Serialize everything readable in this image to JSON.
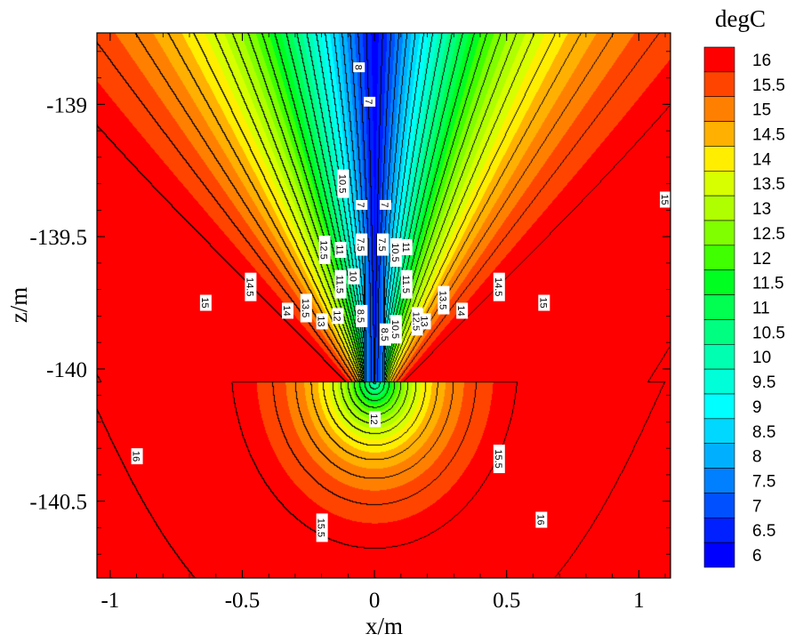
{
  "chart_data": {
    "type": "heatmap",
    "xlabel": "x/m",
    "ylabel": "z/m",
    "xlim": [
      -1.05,
      1.12
    ],
    "ylim": [
      -140.79,
      -138.73
    ],
    "x_ticks": [
      {
        "value": -1,
        "label": "-1"
      },
      {
        "value": -0.5,
        "label": "-0.5"
      },
      {
        "value": 0,
        "label": "0"
      },
      {
        "value": 0.5,
        "label": "0.5"
      },
      {
        "value": 1,
        "label": "1"
      }
    ],
    "y_ticks": [
      {
        "value": -139,
        "label": "-139"
      },
      {
        "value": -139.5,
        "label": "-139.5"
      },
      {
        "value": -140,
        "label": "-140"
      },
      {
        "value": -140.5,
        "label": "-140.5"
      }
    ],
    "colorbar": {
      "title": "degC",
      "levels": [
        {
          "value": 16,
          "label": "16",
          "color": "#ff0000"
        },
        {
          "value": 15.5,
          "label": "15.5",
          "color": "#ff4400"
        },
        {
          "value": 15,
          "label": "15",
          "color": "#ff8000"
        },
        {
          "value": 14.5,
          "label": "14.5",
          "color": "#ffb000"
        },
        {
          "value": 14,
          "label": "14",
          "color": "#ffee00"
        },
        {
          "value": 13.5,
          "label": "13.5",
          "color": "#d8ff00"
        },
        {
          "value": 13,
          "label": "13",
          "color": "#b0ff00"
        },
        {
          "value": 12.5,
          "label": "12.5",
          "color": "#80ff00"
        },
        {
          "value": 12,
          "label": "12",
          "color": "#40ff00"
        },
        {
          "value": 11.5,
          "label": "11.5",
          "color": "#00ff20"
        },
        {
          "value": 11,
          "label": "11",
          "color": "#00ff50"
        },
        {
          "value": 10.5,
          "label": "10.5",
          "color": "#00ff80"
        },
        {
          "value": 10,
          "label": "10",
          "color": "#00ffb0"
        },
        {
          "value": 9.5,
          "label": "9.5",
          "color": "#00ffd8"
        },
        {
          "value": 9,
          "label": "9",
          "color": "#00ffff"
        },
        {
          "value": 8.5,
          "label": "8.5",
          "color": "#00d8ff"
        },
        {
          "value": 8,
          "label": "8",
          "color": "#00b0ff"
        },
        {
          "value": 7.5,
          "label": "7.5",
          "color": "#0080ff"
        },
        {
          "value": 7,
          "label": "7",
          "color": "#0050ff"
        },
        {
          "value": 6.5,
          "label": "6.5",
          "color": "#0020ff"
        },
        {
          "value": 6,
          "label": "6",
          "color": "#0000ff"
        }
      ]
    },
    "field": {
      "description": "V-shaped temperature field around a cold vertical pipe at x=0 ending near z=-140.05",
      "pipe_x": 0,
      "pipe_bottom_z": -140.05,
      "core_value": 6.5,
      "far_value": 16.5
    },
    "contour_labels": [
      {
        "text": "8",
        "x": -0.06,
        "z": -138.86
      },
      {
        "text": "7",
        "x": -0.02,
        "z": -138.99
      },
      {
        "text": "10.5",
        "x": -0.12,
        "z": -139.3
      },
      {
        "text": "7",
        "x": -0.05,
        "z": -139.38
      },
      {
        "text": "7",
        "x": 0.04,
        "z": -139.38
      },
      {
        "text": "12.5",
        "x": -0.19,
        "z": -139.55
      },
      {
        "text": "11",
        "x": -0.13,
        "z": -139.55
      },
      {
        "text": "7.5",
        "x": -0.05,
        "z": -139.53
      },
      {
        "text": "7.5",
        "x": 0.03,
        "z": -139.53
      },
      {
        "text": "10.5",
        "x": 0.08,
        "z": -139.56
      },
      {
        "text": "11",
        "x": 0.12,
        "z": -139.54
      },
      {
        "text": "11.5",
        "x": -0.13,
        "z": -139.68
      },
      {
        "text": "10",
        "x": -0.08,
        "z": -139.65
      },
      {
        "text": "11.5",
        "x": 0.12,
        "z": -139.68
      },
      {
        "text": "14.5",
        "x": -0.47,
        "z": -139.69
      },
      {
        "text": "13.5",
        "x": -0.26,
        "z": -139.77
      },
      {
        "text": "12",
        "x": -0.14,
        "z": -139.8
      },
      {
        "text": "8.5",
        "x": -0.05,
        "z": -139.8
      },
      {
        "text": "15",
        "x": -0.64,
        "z": -139.75
      },
      {
        "text": "14",
        "x": -0.33,
        "z": -139.78
      },
      {
        "text": "13",
        "x": -0.2,
        "z": -139.82
      },
      {
        "text": "8.5",
        "x": 0.04,
        "z": -139.87
      },
      {
        "text": "10.5",
        "x": 0.08,
        "z": -139.85
      },
      {
        "text": "12.5",
        "x": 0.16,
        "z": -139.82
      },
      {
        "text": "13",
        "x": 0.19,
        "z": -139.82
      },
      {
        "text": "13.5",
        "x": 0.26,
        "z": -139.74
      },
      {
        "text": "14",
        "x": 0.33,
        "z": -139.78
      },
      {
        "text": "14.5",
        "x": 0.47,
        "z": -139.69
      },
      {
        "text": "15",
        "x": 0.64,
        "z": -139.75
      },
      {
        "text": "12",
        "x": 0.0,
        "z": -140.19
      },
      {
        "text": "16",
        "x": -0.9,
        "z": -140.33
      },
      {
        "text": "15.5",
        "x": 0.47,
        "z": -140.34
      },
      {
        "text": "15",
        "x": 1.1,
        "z": -139.36
      },
      {
        "text": "15.5",
        "x": -0.2,
        "z": -140.6
      },
      {
        "text": "16",
        "x": 0.63,
        "z": -140.57
      }
    ]
  }
}
